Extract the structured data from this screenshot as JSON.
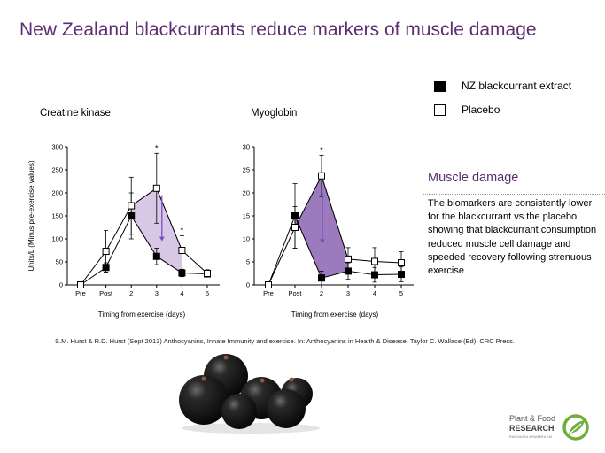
{
  "slide": {
    "title": "New Zealand blackcurrants reduce markers of muscle damage"
  },
  "legend": {
    "items": [
      {
        "label": "NZ blackcurrant extract",
        "marker": "filled-square"
      },
      {
        "label": "Placebo",
        "marker": "open-square"
      }
    ]
  },
  "chart_data": [
    {
      "type": "line",
      "title": "Creatine kinase",
      "xlabel": "Timing from exercise (days)",
      "ylabel": "Units/L (Minus pre-exercise values)",
      "categories": [
        "Pre",
        "Post",
        "2",
        "3",
        "4",
        "5"
      ],
      "ylim": [
        0,
        300
      ],
      "yticks": [
        "0",
        "50",
        "100",
        "150",
        "200",
        "250",
        "300"
      ],
      "grid": false,
      "series": [
        {
          "name": "NZ blackcurrant extract",
          "marker": "filled-square",
          "values": [
            0,
            38,
            150,
            62,
            26,
            24
          ],
          "errors": [
            0,
            10,
            50,
            18,
            8,
            6
          ]
        },
        {
          "name": "Placebo",
          "marker": "open-square",
          "values": [
            0,
            73,
            172,
            210,
            75,
            25
          ],
          "errors": [
            0,
            45,
            62,
            76,
            32,
            8
          ]
        }
      ],
      "significance": [
        {
          "category": "3",
          "label": "*"
        },
        {
          "category": "4",
          "label": "*"
        }
      ],
      "shading": {
        "between_categories": [
          "2",
          "4"
        ],
        "color": "#d9c7e6"
      }
    },
    {
      "type": "line",
      "title": "Myoglobin",
      "xlabel": "Timing from exercise (days)",
      "ylabel": "",
      "categories": [
        "Pre",
        "Post",
        "2",
        "3",
        "4",
        "5"
      ],
      "ylim": [
        0,
        30
      ],
      "yticks": [
        "0",
        "5",
        "10",
        "15",
        "20",
        "25",
        "30"
      ],
      "grid": false,
      "series": [
        {
          "name": "NZ blackcurrant extract",
          "marker": "filled-square",
          "values": [
            0,
            15,
            1.5,
            3.0,
            2.2,
            2.3
          ],
          "errors": [
            0,
            7,
            1.5,
            1.8,
            1.6,
            1.6
          ]
        },
        {
          "name": "Placebo",
          "marker": "open-square",
          "values": [
            0,
            12.5,
            23.7,
            5.6,
            5.1,
            4.8
          ],
          "errors": [
            0,
            4.5,
            4.5,
            2.5,
            3.0,
            2.4
          ]
        }
      ],
      "significance": [
        {
          "category": "2",
          "label": "*"
        }
      ],
      "shading": {
        "between_categories": [
          "Post",
          "3"
        ],
        "color": "#9b7bbd"
      }
    }
  ],
  "sidebar": {
    "heading": "Muscle damage",
    "body": "The biomarkers are consistently lower for the blackcurrant vs the placebo showing that blackcurrant consumption reduced muscle cell damage and speeded recovery following strenuous exercise"
  },
  "citation": {
    "text": "S.M. Hurst & R.D. Hurst (Sept 2013) Anthocyanins,  Innate Immunity  and exercise.  In: Anthocyanins  in Health & Disease. Taylor C. Wallace (Ed), CRC Press."
  },
  "logo": {
    "line1": "Plant & Food",
    "line2": "RESEARCH",
    "line3": "RANGAHAU AHUMĀRA KAI"
  },
  "colors": {
    "title": "#5c2d72",
    "accent": "#5c2d72",
    "shade_light": "#d9c7e6",
    "shade_dark": "#9b7bbd",
    "arrow": "#7a4fc4",
    "logo_green": "#6fae3a"
  }
}
